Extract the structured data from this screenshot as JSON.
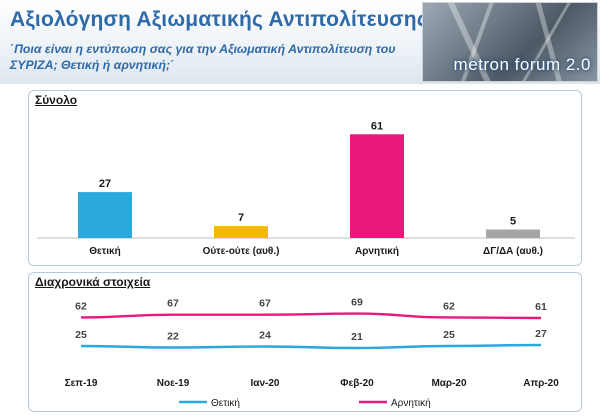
{
  "header": {
    "title": "Αξιολόγηση Αξιωματικής Αντιπολίτευσης",
    "subtitle": "΄Ποια είναι η εντύπωση σας για την Αξιωματική Αντιπολίτευση του ΣΥΡΙΖΑ; Θετική ή αρνητική;΄",
    "brand": "metron forum 2.0"
  },
  "colors": {
    "title_blue": "#2e6aa8",
    "positive": "#2aa9df",
    "neutral": "#f5b800",
    "negative": "#e8197a",
    "dk": "#a6a6a6"
  },
  "panels": {
    "total_title": "Σύνολο",
    "trend_title": "Διαχρονικά στοιχεία"
  },
  "chart_data": [
    {
      "type": "bar",
      "title": "Σύνολο",
      "categories": [
        "Θετική",
        "Ούτε-ούτε (αυθ.)",
        "Αρνητική",
        "ΔΓ/ΔΑ (αυθ.)"
      ],
      "values": [
        27,
        7,
        61,
        5
      ],
      "colors": [
        "#2aa9df",
        "#f5b800",
        "#e8197a",
        "#a6a6a6"
      ],
      "ylim": [
        0,
        70
      ],
      "grid": false,
      "legend": "none"
    },
    {
      "type": "line",
      "title": "Διαχρονικά στοιχεία",
      "x": [
        "Σεπ-19",
        "Νοε-19",
        "Ιαν-20",
        "Φεβ-20",
        "Μαρ-20",
        "Απρ-20"
      ],
      "series": [
        {
          "name": "Θετική",
          "values": [
            25,
            22,
            24,
            21,
            25,
            27
          ],
          "color": "#2aa9df"
        },
        {
          "name": "Αρνητική",
          "values": [
            62,
            67,
            67,
            69,
            62,
            61
          ],
          "color": "#e8197a"
        }
      ],
      "grid": false,
      "legend": "bottom"
    }
  ]
}
